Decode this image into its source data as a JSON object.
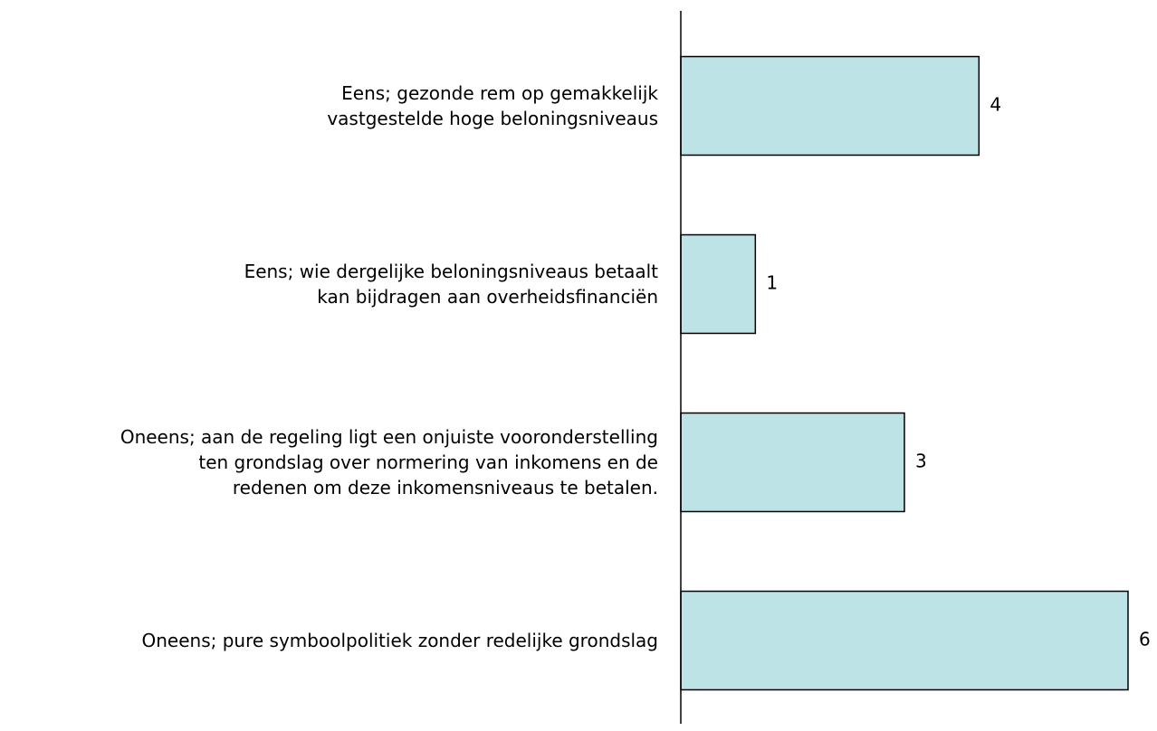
{
  "chart_data": {
    "type": "bar",
    "orientation": "horizontal",
    "categories": [
      "Eens; gezonde rem op gemakkelijk\nvastgestelde hoge beloningsniveaus",
      "Eens; wie dergelijke beloningsniveaus betaalt\nkan  bijdragen aan overheidsfinanciën",
      "Oneens; aan de regeling ligt een onjuiste vooronderstelling\nten grondslag over normering van inkomens en de\nredenen om deze inkomensniveaus te betalen.",
      "Oneens; pure symboolpolitiek zonder redelijke grondslag"
    ],
    "values": [
      4,
      1,
      3,
      6
    ],
    "color": "#bde3e6",
    "xlim": [
      0,
      6
    ]
  }
}
